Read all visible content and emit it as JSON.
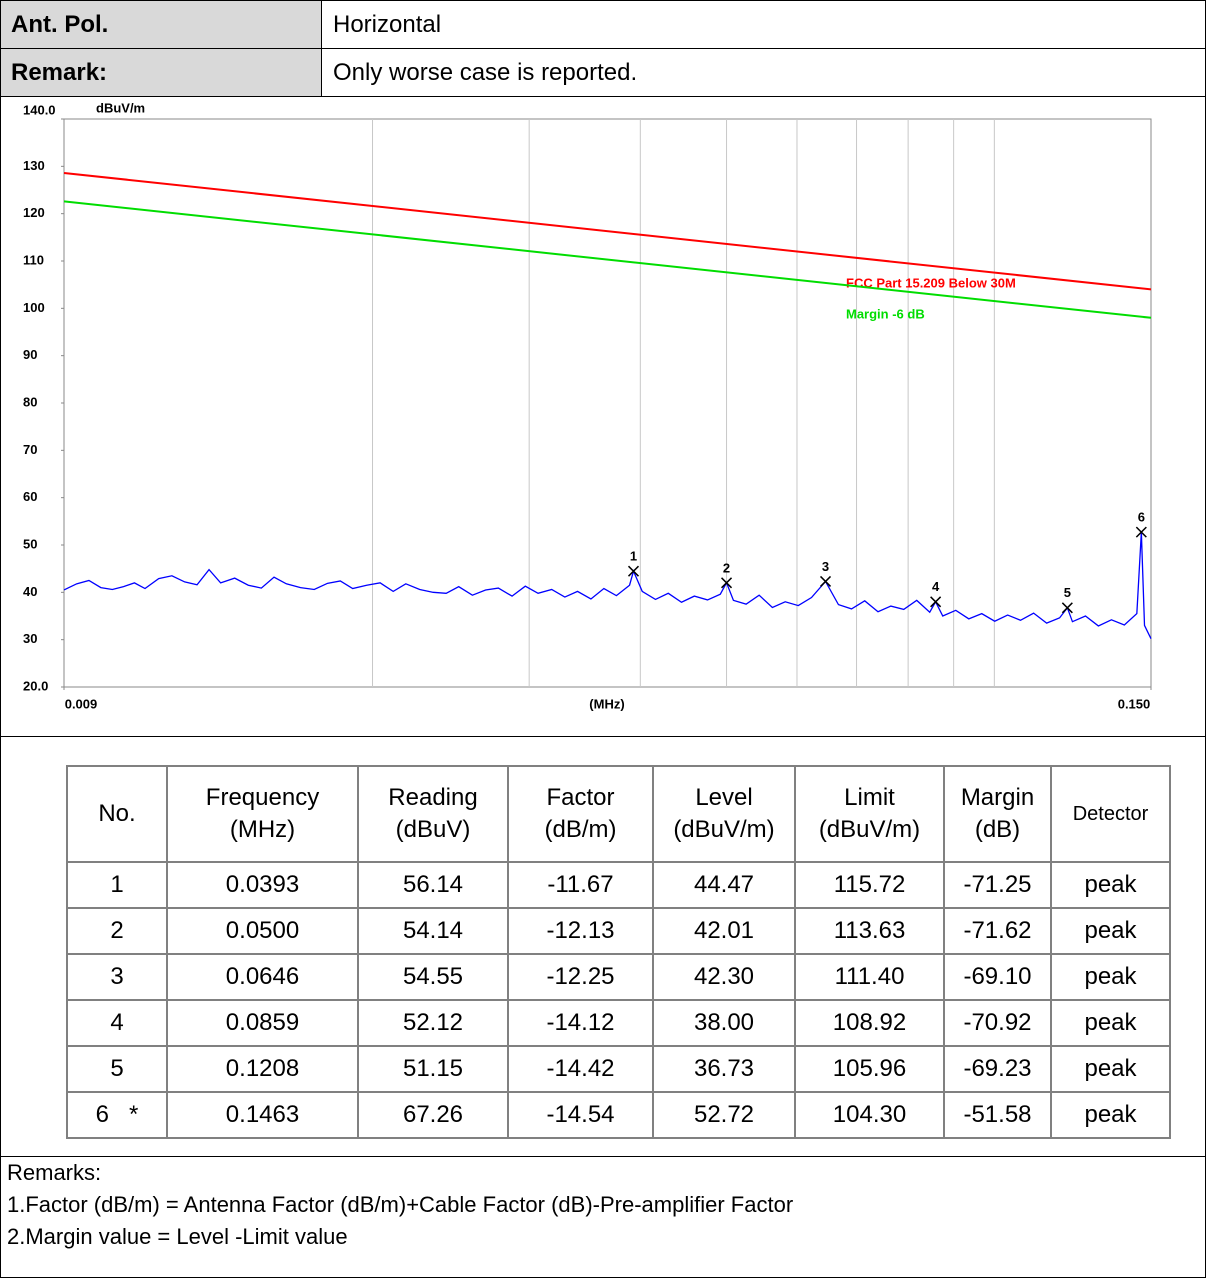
{
  "info": [
    {
      "label": "Ant. Pol.",
      "value": "Horizontal"
    },
    {
      "label": "Remark:",
      "value": "Only worse case is reported."
    }
  ],
  "chart_data": {
    "type": "line",
    "ylabel": "dBuV/m",
    "xlabel": "(MHz)",
    "xscale": "log",
    "xlim": [
      0.009,
      0.15
    ],
    "xticks": [
      {
        "value": 0.009,
        "label": "0.009"
      },
      {
        "value": 0.15,
        "label": "0.150"
      }
    ],
    "xgrid": [
      0.02,
      0.03,
      0.04,
      0.05,
      0.06,
      0.07,
      0.08,
      0.09,
      0.1
    ],
    "ylim": [
      20,
      140
    ],
    "yticks": [
      {
        "value": 20,
        "label": "20.0"
      },
      30,
      40,
      50,
      60,
      70,
      80,
      90,
      100,
      110,
      120,
      130,
      {
        "value": 140,
        "label": "140.0"
      }
    ],
    "series": [
      {
        "name": "FCC Part 15.209 Below 30M",
        "color": "#ff0000",
        "x": [
          0.009,
          0.15
        ],
        "values": [
          128.6,
          104.0
        ]
      },
      {
        "name": "Margin -6 dB",
        "color": "#00dd00",
        "x": [
          0.009,
          0.15
        ],
        "values": [
          122.6,
          98.0
        ]
      },
      {
        "color": "#0000ff",
        "x": [
          0.009,
          0.0093,
          0.0096,
          0.0099,
          0.0102,
          0.0105,
          0.0108,
          0.0111,
          0.0115,
          0.0119,
          0.0123,
          0.0127,
          0.0131,
          0.0135,
          0.014,
          0.0145,
          0.015,
          0.0155,
          0.016,
          0.0166,
          0.0172,
          0.0178,
          0.0184,
          0.019,
          0.0197,
          0.0204,
          0.0211,
          0.0218,
          0.0226,
          0.0234,
          0.0242,
          0.025,
          0.0259,
          0.0268,
          0.0277,
          0.0287,
          0.0297,
          0.0307,
          0.0318,
          0.0329,
          0.034,
          0.0352,
          0.0364,
          0.0376,
          0.0389,
          0.0393,
          0.0402,
          0.0416,
          0.043,
          0.0445,
          0.046,
          0.0476,
          0.0492,
          0.05,
          0.0509,
          0.0526,
          0.0544,
          0.0563,
          0.0582,
          0.0602,
          0.0623,
          0.0646,
          0.0668,
          0.0691,
          0.0715,
          0.074,
          0.0765,
          0.0791,
          0.0818,
          0.0846,
          0.0859,
          0.0875,
          0.0905,
          0.0936,
          0.0968,
          0.1001,
          0.1035,
          0.107,
          0.1107,
          0.1145,
          0.1184,
          0.1208,
          0.1224,
          0.1266,
          0.1309,
          0.1354,
          0.14,
          0.1446,
          0.1463,
          0.1475,
          0.15
        ],
        "values": [
          40.5,
          41.8,
          42.5,
          41.0,
          40.6,
          41.2,
          42.0,
          40.8,
          42.9,
          43.5,
          42.2,
          41.6,
          44.8,
          42.0,
          43.0,
          41.5,
          40.9,
          43.2,
          41.8,
          41.0,
          40.6,
          41.9,
          42.4,
          40.8,
          41.5,
          42.0,
          40.2,
          41.8,
          40.6,
          40.0,
          39.8,
          41.2,
          39.4,
          40.5,
          40.9,
          39.2,
          41.3,
          39.8,
          40.6,
          39.0,
          40.2,
          38.6,
          40.8,
          39.3,
          41.5,
          44.47,
          40.2,
          38.5,
          39.8,
          37.9,
          39.2,
          38.4,
          39.6,
          42.01,
          38.3,
          37.5,
          39.4,
          36.8,
          38.0,
          37.2,
          38.9,
          42.3,
          37.4,
          36.5,
          38.2,
          35.9,
          37.1,
          36.4,
          38.3,
          35.8,
          38.0,
          35.0,
          36.2,
          34.4,
          35.5,
          33.9,
          35.2,
          34.1,
          35.6,
          33.5,
          34.6,
          36.73,
          33.8,
          35.0,
          32.9,
          34.2,
          33.1,
          35.5,
          52.72,
          33.0,
          30.2
        ]
      }
    ],
    "markers": {
      "labels": [
        "1",
        "2",
        "3",
        "4",
        "5",
        "6"
      ],
      "x": [
        0.0393,
        0.05,
        0.0646,
        0.0859,
        0.1208,
        0.1463
      ],
      "y": [
        44.47,
        42.01,
        42.3,
        38.0,
        36.73,
        52.72
      ]
    }
  },
  "table": {
    "headers": [
      "No.",
      "Frequency\n(MHz)",
      "Reading\n(dBuV)",
      "Factor\n(dB/m)",
      "Level\n(dBuV/m)",
      "Limit\n(dBuV/m)",
      "Margin\n(dB)",
      "Detector"
    ],
    "rows": [
      [
        "1",
        "0.0393",
        "56.14",
        "-11.67",
        "44.47",
        "115.72",
        "-71.25",
        "peak"
      ],
      [
        "2",
        "0.0500",
        "54.14",
        "-12.13",
        "42.01",
        "113.63",
        "-71.62",
        "peak"
      ],
      [
        "3",
        "0.0646",
        "54.55",
        "-12.25",
        "42.30",
        "111.40",
        "-69.10",
        "peak"
      ],
      [
        "4",
        "0.0859",
        "52.12",
        "-14.12",
        "38.00",
        "108.92",
        "-70.92",
        "peak"
      ],
      [
        "5",
        "0.1208",
        "51.15",
        "-14.42",
        "36.73",
        "105.96",
        "-69.23",
        "peak"
      ],
      [
        "6   *",
        "0.1463",
        "67.26",
        "-14.54",
        "52.72",
        "104.30",
        "-51.58",
        "peak"
      ]
    ]
  },
  "remarks": {
    "title": "Remarks:",
    "lines": [
      "1.Factor (dB/m) = Antenna Factor (dB/m)+Cable Factor (dB)-Pre-amplifier Factor",
      "2.Margin value = Level -Limit value"
    ]
  }
}
